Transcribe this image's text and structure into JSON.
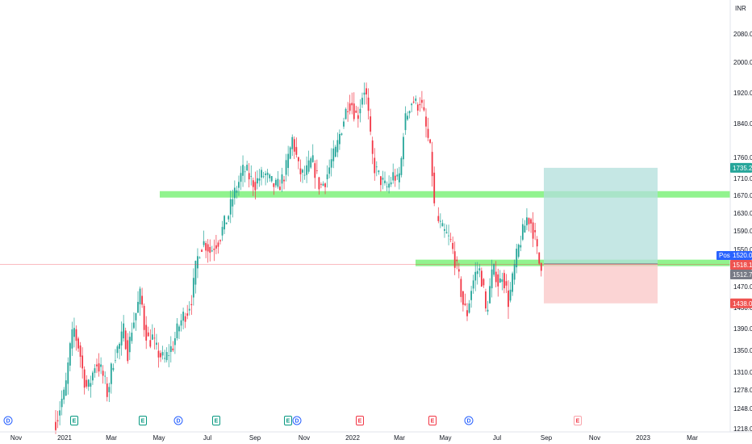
{
  "chart_data": {
    "type": "candlestick",
    "currency_label": "INR",
    "y_ticks": [
      "2080.00",
      "2000.00",
      "1920.00",
      "1840.00",
      "1760.00",
      "1710.00",
      "1670.00",
      "1630.00",
      "1590.00",
      "1550.00",
      "1470.00",
      "1430.00",
      "1390.00",
      "1350.00",
      "1310.00",
      "1278.00",
      "1248.00",
      "1218.00"
    ],
    "x_ticks": [
      "Nov",
      "2021",
      "Mar",
      "May",
      "Jul",
      "Sep",
      "Nov",
      "2022",
      "Mar",
      "May",
      "Jul",
      "Sep",
      "Nov",
      "2023",
      "Mar"
    ],
    "ylim": [
      1210,
      2110
    ],
    "price_badges": [
      {
        "label": "1735.20",
        "color": "#26a69a"
      },
      {
        "label": "Post",
        "color": "#2962ff"
      },
      {
        "label": "1520.00",
        "color": "#2962ff"
      },
      {
        "label": "1518.15",
        "color": "#ef5350"
      },
      {
        "label": "1512.75",
        "color": "#787b86"
      },
      {
        "label": "1438.05",
        "color": "#ef5350"
      }
    ],
    "support_resistance_zones": [
      {
        "from": 1665,
        "to": 1680
      },
      {
        "from": 1514,
        "to": 1528
      }
    ],
    "position": {
      "entry": 1519,
      "target": 1735.2,
      "stop": 1438.05
    },
    "current_price": 1518.15,
    "events": [
      {
        "letter": "D",
        "kind": "dividend"
      },
      {
        "letter": "E",
        "kind": "earnings"
      },
      {
        "letter": "E",
        "kind": "earnings"
      },
      {
        "letter": "D",
        "kind": "dividend"
      },
      {
        "letter": "E",
        "kind": "earnings"
      },
      {
        "letter": "E",
        "kind": "earnings"
      },
      {
        "letter": "D",
        "kind": "dividend"
      },
      {
        "letter": "E",
        "kind": "earnings"
      },
      {
        "letter": "E",
        "kind": "earnings"
      },
      {
        "letter": "D",
        "kind": "dividend"
      },
      {
        "letter": "E",
        "kind": "earnings"
      }
    ],
    "colors": {
      "up": "#26a69a",
      "down": "#f23645",
      "zone": "#7ef17a",
      "target": "#b2dfdb",
      "stop": "#f9c5c5"
    }
  }
}
